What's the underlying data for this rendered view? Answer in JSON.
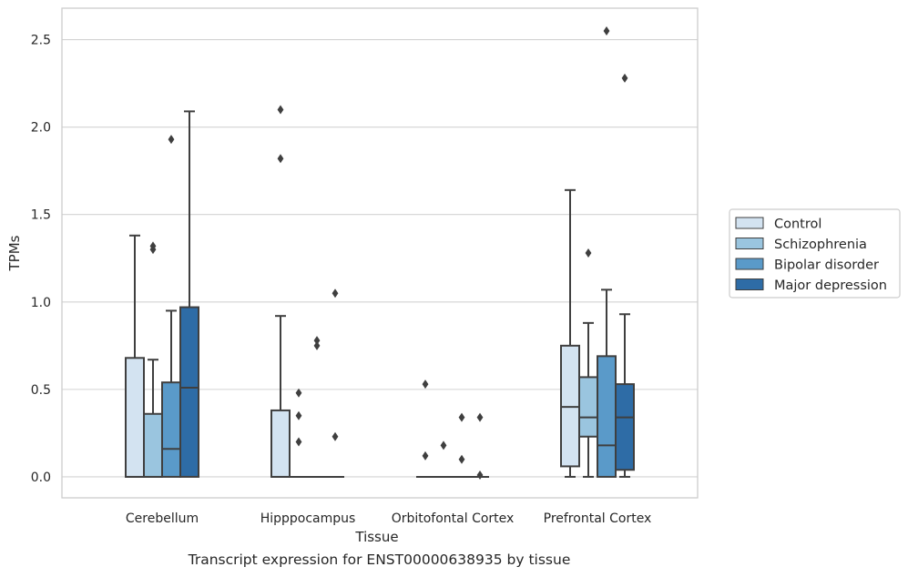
{
  "caption": "Transcript expression for ENST00000638935 by tissue",
  "chart_data": {
    "type": "box",
    "xlabel": "Tissue",
    "ylabel": "TPMs",
    "ylim": [
      -0.12,
      2.68
    ],
    "yticks": [
      0.0,
      0.5,
      1.0,
      1.5,
      2.0,
      2.5
    ],
    "ytick_labels": [
      "0.0",
      "0.5",
      "1.0",
      "1.5",
      "2.0",
      "2.5"
    ],
    "grid": "horizontal",
    "legend_position": "right",
    "categories": [
      "Cerebellum",
      "Hipppocampus",
      "Orbitofontal Cortex",
      "Prefrontal Cortex"
    ],
    "series": [
      {
        "name": "Control",
        "color": "#d3e3f1",
        "boxes": [
          {
            "q1": 0.0,
            "median": 0.0,
            "q3": 0.68,
            "whisker_low": 0.0,
            "whisker_high": 1.38,
            "outliers": []
          },
          {
            "q1": 0.0,
            "median": 0.0,
            "q3": 0.38,
            "whisker_low": 0.0,
            "whisker_high": 0.92,
            "outliers": [
              1.82,
              2.1
            ]
          },
          {
            "q1": 0.0,
            "median": 0.0,
            "q3": 0.0,
            "whisker_low": 0.0,
            "whisker_high": 0.0,
            "outliers": [
              0.12,
              0.53
            ]
          },
          {
            "q1": 0.06,
            "median": 0.4,
            "q3": 0.75,
            "whisker_low": 0.0,
            "whisker_high": 1.64,
            "outliers": []
          }
        ]
      },
      {
        "name": "Schizophrenia",
        "color": "#9ac5df",
        "boxes": [
          {
            "q1": 0.0,
            "median": 0.0,
            "q3": 0.36,
            "whisker_low": 0.0,
            "whisker_high": 0.67,
            "outliers": [
              1.3,
              1.32
            ]
          },
          {
            "q1": 0.0,
            "median": 0.0,
            "q3": 0.0,
            "whisker_low": 0.0,
            "whisker_high": 0.0,
            "outliers": [
              0.2,
              0.35,
              0.48
            ]
          },
          {
            "q1": 0.0,
            "median": 0.0,
            "q3": 0.0,
            "whisker_low": 0.0,
            "whisker_high": 0.0,
            "outliers": [
              0.18
            ]
          },
          {
            "q1": 0.23,
            "median": 0.34,
            "q3": 0.57,
            "whisker_low": 0.0,
            "whisker_high": 0.88,
            "outliers": [
              1.28
            ]
          }
        ]
      },
      {
        "name": "Bipolar disorder",
        "color": "#5a9ac9",
        "boxes": [
          {
            "q1": 0.0,
            "median": 0.16,
            "q3": 0.54,
            "whisker_low": 0.0,
            "whisker_high": 0.95,
            "outliers": [
              1.93
            ]
          },
          {
            "q1": 0.0,
            "median": 0.0,
            "q3": 0.0,
            "whisker_low": 0.0,
            "whisker_high": 0.0,
            "outliers": [
              0.75,
              0.78
            ]
          },
          {
            "q1": 0.0,
            "median": 0.0,
            "q3": 0.0,
            "whisker_low": 0.0,
            "whisker_high": 0.0,
            "outliers": [
              0.1,
              0.34
            ]
          },
          {
            "q1": 0.0,
            "median": 0.18,
            "q3": 0.69,
            "whisker_low": 0.0,
            "whisker_high": 1.07,
            "outliers": [
              2.55
            ]
          }
        ]
      },
      {
        "name": "Major depression",
        "color": "#2e6ca6",
        "boxes": [
          {
            "q1": 0.0,
            "median": 0.51,
            "q3": 0.97,
            "whisker_low": 0.0,
            "whisker_high": 2.09,
            "outliers": []
          },
          {
            "q1": 0.0,
            "median": 0.0,
            "q3": 0.0,
            "whisker_low": 0.0,
            "whisker_high": 0.0,
            "outliers": [
              0.23,
              1.05
            ]
          },
          {
            "q1": 0.0,
            "median": 0.0,
            "q3": 0.0,
            "whisker_low": 0.0,
            "whisker_high": 0.0,
            "outliers": [
              0.01,
              0.34
            ]
          },
          {
            "q1": 0.04,
            "median": 0.34,
            "q3": 0.53,
            "whisker_low": 0.0,
            "whisker_high": 0.93,
            "outliers": [
              2.28
            ]
          }
        ]
      }
    ]
  }
}
